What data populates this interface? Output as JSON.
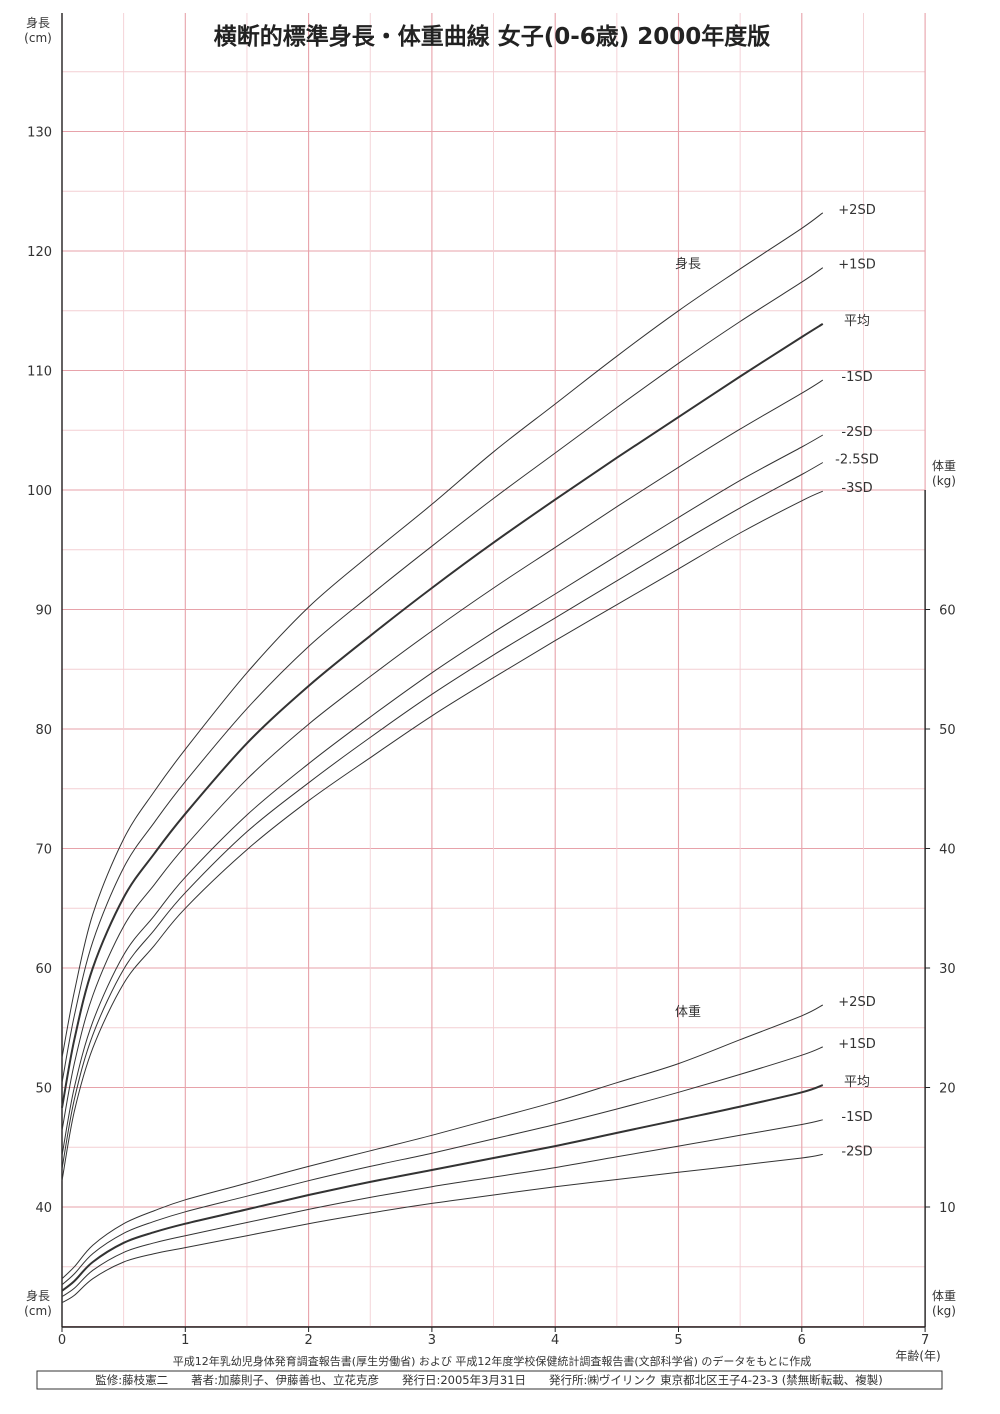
{
  "chart_data": {
    "type": "line",
    "title": "横断的標準身長・体重曲線 女子(0-6歳) 2000年度版",
    "x_axis": {
      "label": "年齢(年)",
      "ticks": [
        "0",
        "1",
        "2",
        "3",
        "4",
        "5",
        "6",
        "7"
      ],
      "range": [
        0,
        7
      ]
    },
    "y_left": {
      "label_top": "身長\n(cm)",
      "label_bottom": "身長\n(cm)",
      "ticks": [
        "40",
        "50",
        "60",
        "70",
        "80",
        "90",
        "100",
        "110",
        "120",
        "130"
      ],
      "range": [
        30,
        140
      ],
      "grid_minor_step": 5
    },
    "y_right": {
      "label_top": "体重\n(kg)",
      "label_bottom": "体重\n(kg)",
      "ticks": [
        "10",
        "20",
        "30",
        "40",
        "50",
        "60"
      ],
      "range": [
        0,
        70
      ]
    },
    "grid": true,
    "height": {
      "name": "身長",
      "ages": [
        0,
        0.1,
        0.25,
        0.5,
        0.75,
        1,
        1.5,
        2,
        2.5,
        3,
        3.5,
        4,
        4.5,
        5,
        5.5,
        6,
        6.17
      ],
      "series": [
        {
          "name": "+2SD",
          "values": [
            52.5,
            58,
            64.5,
            70.8,
            74.8,
            78.3,
            84.7,
            90.2,
            94.6,
            98.8,
            103.2,
            107.2,
            111.2,
            115.0,
            118.5,
            121.9,
            123.2
          ]
        },
        {
          "name": "+1SD",
          "values": [
            50.4,
            56,
            62.2,
            68.4,
            72.2,
            75.6,
            81.7,
            86.9,
            91.2,
            95.3,
            99.3,
            103.1,
            106.9,
            110.6,
            114.1,
            117.4,
            118.6
          ]
        },
        {
          "name": "平均",
          "values": [
            48.3,
            54,
            60.0,
            65.9,
            69.6,
            72.9,
            78.8,
            83.6,
            87.8,
            91.8,
            95.6,
            99.2,
            102.7,
            106.1,
            109.5,
            112.8,
            113.9
          ]
        },
        {
          "name": "-1SD",
          "values": [
            46.4,
            52,
            57.7,
            63.5,
            67.0,
            70.2,
            75.8,
            80.4,
            84.4,
            88.2,
            91.8,
            95.2,
            98.6,
            101.9,
            105.1,
            108.1,
            109.2
          ]
        },
        {
          "name": "-2SD",
          "values": [
            44.3,
            50,
            55.5,
            61.1,
            64.4,
            67.6,
            72.8,
            77.1,
            81.0,
            84.7,
            88.1,
            91.3,
            94.5,
            97.7,
            100.8,
            103.6,
            104.6
          ]
        },
        {
          "name": "-2.5SD",
          "values": [
            43.2,
            49,
            54.4,
            59.9,
            63.2,
            66.3,
            71.4,
            75.5,
            79.3,
            82.9,
            86.2,
            89.3,
            92.4,
            95.5,
            98.5,
            101.3,
            102.3
          ]
        },
        {
          "name": "-3SD",
          "values": [
            42.2,
            48,
            53.3,
            58.7,
            61.9,
            65.0,
            69.9,
            74.0,
            77.6,
            81.1,
            84.3,
            87.4,
            90.4,
            93.4,
            96.4,
            99.1,
            99.9
          ]
        }
      ]
    },
    "weight": {
      "name": "体重",
      "ages": [
        0,
        0.1,
        0.25,
        0.5,
        0.75,
        1,
        1.5,
        2,
        2.5,
        3,
        3.5,
        4,
        4.5,
        5,
        5.5,
        6,
        6.17
      ],
      "series": [
        {
          "name": "+2SD",
          "values": [
            4.0,
            5.0,
            6.8,
            8.6,
            9.7,
            10.6,
            12.0,
            13.4,
            14.7,
            16.0,
            17.4,
            18.8,
            20.4,
            22.0,
            24.0,
            26.0,
            26.9
          ]
        },
        {
          "name": "+1SD",
          "values": [
            3.5,
            4.4,
            6.1,
            7.8,
            8.8,
            9.6,
            10.9,
            12.2,
            13.4,
            14.5,
            15.7,
            16.9,
            18.2,
            19.6,
            21.1,
            22.7,
            23.4
          ]
        },
        {
          "name": "平均",
          "values": [
            3.0,
            3.8,
            5.4,
            7.0,
            7.9,
            8.6,
            9.8,
            11.0,
            12.1,
            13.1,
            14.1,
            15.1,
            16.2,
            17.3,
            18.4,
            19.6,
            20.2
          ]
        },
        {
          "name": "-1SD",
          "values": [
            2.5,
            3.2,
            4.7,
            6.2,
            7.0,
            7.6,
            8.7,
            9.8,
            10.8,
            11.7,
            12.5,
            13.3,
            14.2,
            15.1,
            16.0,
            16.9,
            17.3
          ]
        },
        {
          "name": "-2SD",
          "values": [
            2.0,
            2.6,
            4.0,
            5.4,
            6.1,
            6.6,
            7.6,
            8.6,
            9.5,
            10.3,
            11.0,
            11.7,
            12.3,
            12.9,
            13.5,
            14.1,
            14.4
          ]
        }
      ]
    }
  },
  "source_note": "平成12年乳幼児身体発育調査報告書(厚生労働省) および 平成12年度学校保健統計調査報告書(文部科学省) のデータをもとに作成",
  "footer": "監修:藤枝憲二　　著者:加藤則子、伊藤善也、立花克彦　　発行日:2005年3月31日　　発行所:㈱ヴイリンク 東京都北区王子4-23-3 (禁無断転載、複製)",
  "colors": {
    "grid_major": "#e7a2aa",
    "grid_minor": "#f3cfd4",
    "curve": "#333333",
    "axis": "#222222"
  }
}
